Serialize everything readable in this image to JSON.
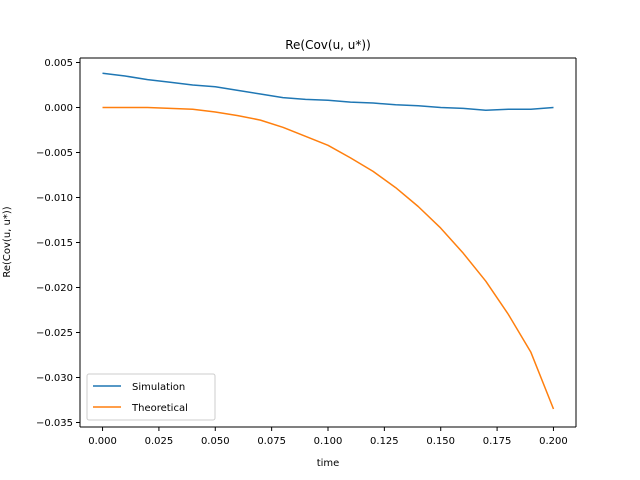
{
  "chart_data": {
    "type": "line",
    "title": "Re(Cov(u, u*))",
    "xlabel": "time",
    "ylabel": "Re(Cov(u, u*))",
    "xlim": [
      -0.01,
      0.21
    ],
    "ylim": [
      -0.0355,
      0.0055
    ],
    "xticks": [
      0.0,
      0.025,
      0.05,
      0.075,
      0.1,
      0.125,
      0.15,
      0.175,
      0.2
    ],
    "xtick_labels": [
      "0.000",
      "0.025",
      "0.050",
      "0.075",
      "0.100",
      "0.125",
      "0.150",
      "0.175",
      "0.200"
    ],
    "yticks": [
      0.005,
      0.0,
      -0.005,
      -0.01,
      -0.015,
      -0.02,
      -0.025,
      -0.03,
      -0.035
    ],
    "ytick_labels": [
      "0.005",
      "0.000",
      "−0.005",
      "−0.010",
      "−0.015",
      "−0.020",
      "−0.025",
      "−0.030",
      "−0.035"
    ],
    "grid": false,
    "legend_position": "lower-left",
    "series": [
      {
        "name": "Simulation",
        "color": "#1f77b4",
        "x": [
          0.0,
          0.01,
          0.02,
          0.03,
          0.04,
          0.05,
          0.06,
          0.07,
          0.08,
          0.09,
          0.1,
          0.11,
          0.12,
          0.13,
          0.14,
          0.15,
          0.16,
          0.17,
          0.18,
          0.19,
          0.2
        ],
        "y": [
          0.0038,
          0.0035,
          0.0031,
          0.0028,
          0.0025,
          0.0023,
          0.0019,
          0.0015,
          0.0011,
          0.0009,
          0.0008,
          0.0006,
          0.0005,
          0.0003,
          0.0002,
          0.0,
          -0.0001,
          -0.0003,
          -0.0002,
          -0.0002,
          0.0
        ]
      },
      {
        "name": "Theoretical",
        "color": "#ff7f0e",
        "x": [
          0.0,
          0.01,
          0.02,
          0.03,
          0.04,
          0.05,
          0.06,
          0.07,
          0.08,
          0.09,
          0.1,
          0.11,
          0.12,
          0.13,
          0.14,
          0.15,
          0.16,
          0.17,
          0.18,
          0.19,
          0.2
        ],
        "y": [
          0.0,
          0.0,
          0.0,
          -0.0001,
          -0.0002,
          -0.0005,
          -0.0009,
          -0.0014,
          -0.0022,
          -0.0032,
          -0.0042,
          -0.0056,
          -0.0071,
          -0.0089,
          -0.011,
          -0.0134,
          -0.0162,
          -0.0193,
          -0.023,
          -0.0272,
          -0.0335
        ]
      }
    ]
  }
}
